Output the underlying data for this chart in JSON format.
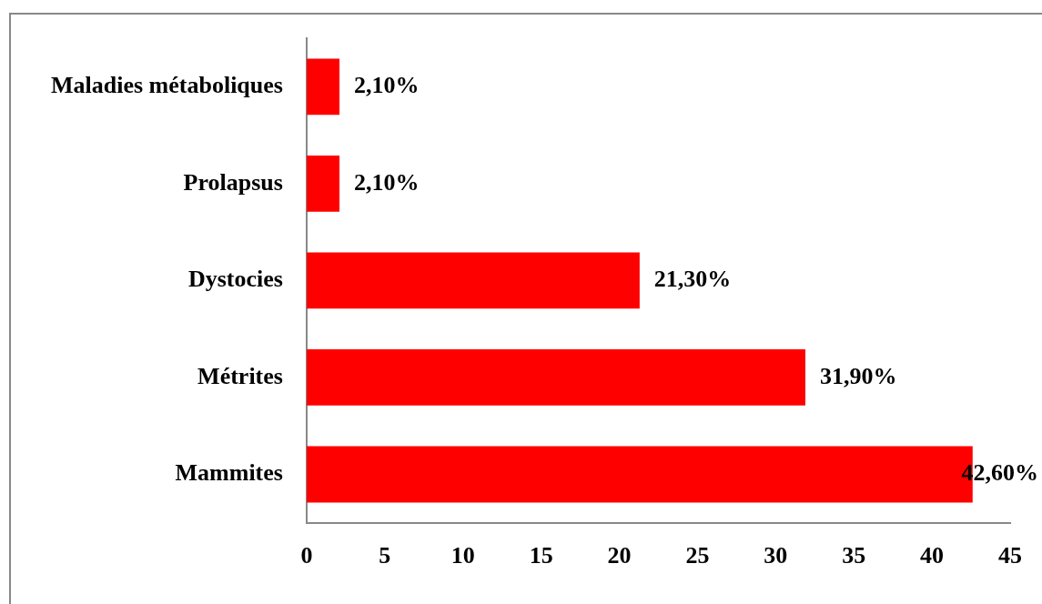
{
  "chart_data": {
    "type": "bar",
    "orientation": "horizontal",
    "categories": [
      "Maladies métaboliques",
      "Prolapsus",
      "Dystocies",
      "Métrites",
      "Mammites"
    ],
    "values": [
      2.1,
      2.1,
      21.3,
      31.9,
      42.6
    ],
    "value_labels": [
      "2,10%",
      "2,10%",
      "21,30%",
      "31,90%",
      "42,60%"
    ],
    "color": "#ff0000",
    "xlim": [
      0,
      45
    ],
    "xticks": [
      0,
      5,
      10,
      15,
      20,
      25,
      30,
      35,
      40,
      45
    ],
    "grid": false,
    "legend": false
  }
}
